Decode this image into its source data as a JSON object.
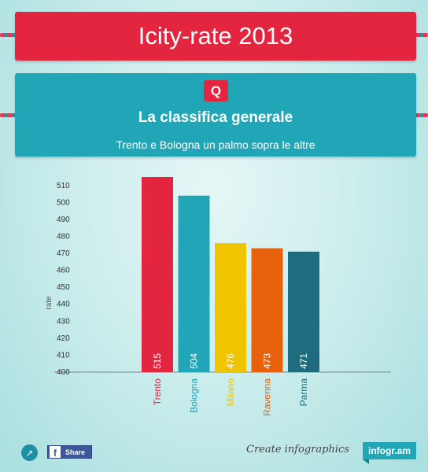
{
  "title": "Icity-rate 2013",
  "badge_letter": "Q",
  "subtitle": "La classifica generale",
  "description": "Trento e Bologna un palmo sopra le altre",
  "colors": {
    "title_banner": "#e3253f",
    "info_banner": "#21a6b8"
  },
  "footer": {
    "share_label": "Share",
    "facebook_glyph": "f",
    "icon": "share-arrow-icon",
    "create_text": "Create infographics",
    "brand": "infogr.am"
  },
  "chart_data": {
    "type": "bar",
    "categories": [
      "Trento",
      "Bologna",
      "Milano",
      "Ravenna",
      "Parma"
    ],
    "values": [
      515,
      504,
      476,
      473,
      471
    ],
    "colors": [
      "#e3253f",
      "#21a6b8",
      "#f0c400",
      "#e8610c",
      "#1f6b80"
    ],
    "title": "",
    "xlabel": "",
    "ylabel": "rate",
    "ylim": [
      400,
      515
    ],
    "yticks": [
      400,
      410,
      420,
      430,
      440,
      450,
      460,
      470,
      480,
      490,
      500,
      510
    ],
    "grid": false,
    "legend": "none",
    "data_labels": true
  }
}
